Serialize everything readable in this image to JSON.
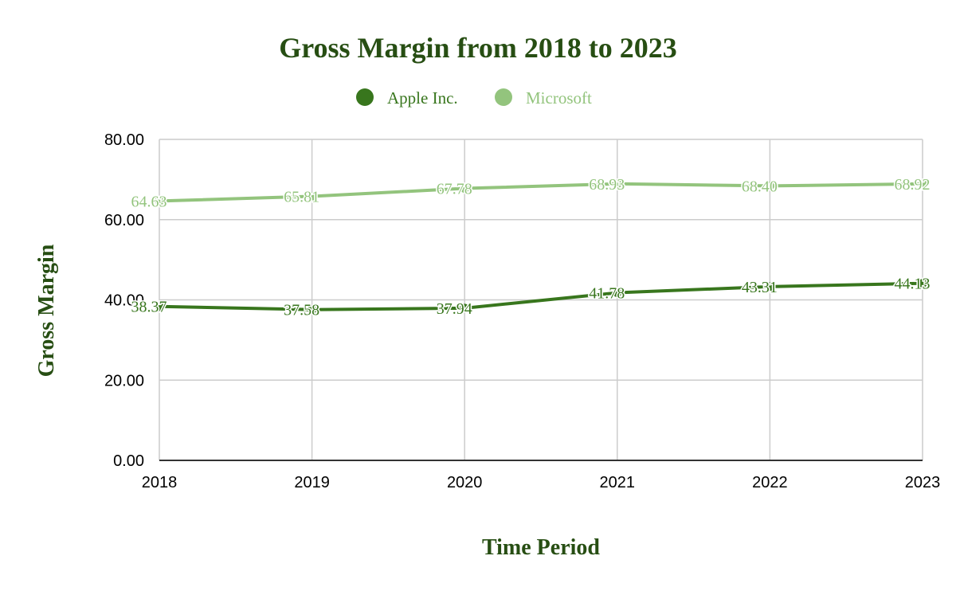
{
  "chart_data": {
    "type": "line",
    "title": "Gross Margin from 2018 to 2023",
    "xlabel": "Time Period",
    "ylabel": "Gross Margin",
    "x": [
      "2018",
      "2019",
      "2020",
      "2021",
      "2022",
      "2023"
    ],
    "y_ticks": [
      "0.00",
      "20.00",
      "40.00",
      "60.00",
      "80.00"
    ],
    "ylim": [
      0,
      80
    ],
    "grid": true,
    "legend_position": "top",
    "series": [
      {
        "name": "Apple Inc.",
        "color": "#38761d",
        "values": [
          38.37,
          37.58,
          37.94,
          41.78,
          43.31,
          44.13
        ],
        "labels": [
          "38.37",
          "37.58",
          "37.94",
          "41.78",
          "43.31",
          "44.13"
        ]
      },
      {
        "name": "Microsoft",
        "color": "#93c47d",
        "values": [
          64.63,
          65.81,
          67.78,
          68.93,
          68.4,
          68.92
        ],
        "labels": [
          "64.63",
          "65.81",
          "67.78",
          "68.93",
          "68.40",
          "68.92"
        ]
      }
    ],
    "title_color": "#274e13",
    "axis_title_color": "#274e13",
    "grid_color": "#cccccc",
    "axis_color": "#333333"
  }
}
